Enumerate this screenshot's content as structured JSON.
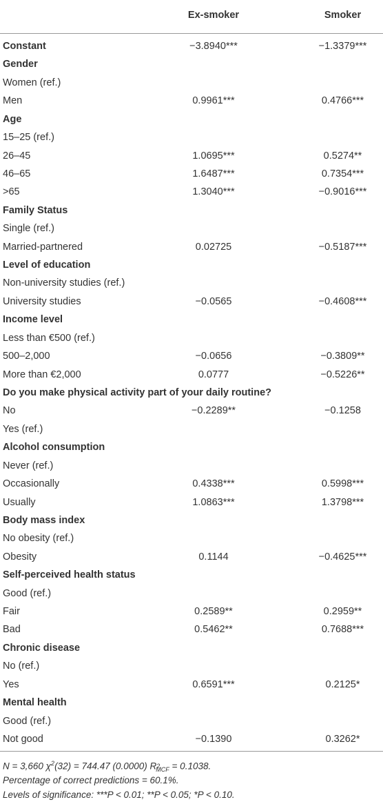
{
  "table": {
    "columns": [
      "Ex-smoker",
      "Smoker"
    ],
    "rows": [
      {
        "label": "Constant",
        "bold": true,
        "values": [
          "−3.8940***",
          "−1.3379***"
        ]
      },
      {
        "label": "Gender",
        "bold": true
      },
      {
        "label": "Women (ref.)"
      },
      {
        "label": "Men",
        "values": [
          "0.9961***",
          "0.4766***"
        ]
      },
      {
        "label": "Age",
        "bold": true
      },
      {
        "label": "15–25 (ref.)"
      },
      {
        "label": "26–45",
        "values": [
          "1.0695***",
          "0.5274**"
        ]
      },
      {
        "label": "46–65",
        "values": [
          "1.6487***",
          "0.7354***"
        ]
      },
      {
        "label": ">65",
        "values": [
          "1.3040***",
          "−0.9016***"
        ]
      },
      {
        "label": "Family Status",
        "bold": true
      },
      {
        "label": "Single (ref.)"
      },
      {
        "label": "Married-partnered",
        "values": [
          "0.02725",
          "−0.5187***"
        ]
      },
      {
        "label": "Level of education",
        "bold": true
      },
      {
        "label": "Non-university studies (ref.)"
      },
      {
        "label": "University studies",
        "values": [
          "−0.0565",
          "−0.4608***"
        ]
      },
      {
        "label": "Income level",
        "bold": true
      },
      {
        "label": "Less than €500 (ref.)"
      },
      {
        "label": "500–2,000",
        "values": [
          "−0.0656",
          "−0.3809**"
        ]
      },
      {
        "label": "More than €2,000",
        "values": [
          "0.0777",
          "−0.5226**"
        ]
      },
      {
        "label": "Do you make physical activity part of your daily routine?",
        "bold": true
      },
      {
        "label": "No",
        "values": [
          "−0.2289**",
          "−0.1258"
        ]
      },
      {
        "label": "Yes (ref.)"
      },
      {
        "label": "Alcohol consumption",
        "bold": true
      },
      {
        "label": "Never (ref.)"
      },
      {
        "label": "Occasionally",
        "values": [
          "0.4338***",
          "0.5998***"
        ]
      },
      {
        "label": "Usually",
        "values": [
          "1.0863***",
          "1.3798***"
        ]
      },
      {
        "label": "Body mass index",
        "bold": true
      },
      {
        "label": "No obesity (ref.)"
      },
      {
        "label": "Obesity",
        "values": [
          "0.1144",
          "−0.4625***"
        ]
      },
      {
        "label": "Self-perceived health status",
        "bold": true
      },
      {
        "label": "Good (ref.)"
      },
      {
        "label": "Fair",
        "values": [
          "0.2589**",
          "0.2959**"
        ]
      },
      {
        "label": "Bad",
        "values": [
          "0.5462**",
          "0.7688***"
        ]
      },
      {
        "label": "Chronic disease",
        "bold": true
      },
      {
        "label": "No (ref.)"
      },
      {
        "label": "Yes",
        "values": [
          "0.6591***",
          "0.2125*"
        ]
      },
      {
        "label": "Mental health",
        "bold": true
      },
      {
        "label": "Good (ref.)"
      },
      {
        "label": "Not good",
        "values": [
          "−0.1390",
          "0.3262*"
        ]
      }
    ],
    "notes": [
      {
        "parts": [
          "N = 3,660 χ",
          "2",
          "(32) = 744.47 (0.0000) R",
          "2",
          "MCF",
          " = 0.1038."
        ]
      },
      {
        "parts": [
          "Percentage of correct predictions = 60.1%."
        ]
      },
      {
        "parts": [
          "Levels of significance: ***P < 0.01; **P < 0.05; *P < 0.10."
        ]
      }
    ]
  }
}
